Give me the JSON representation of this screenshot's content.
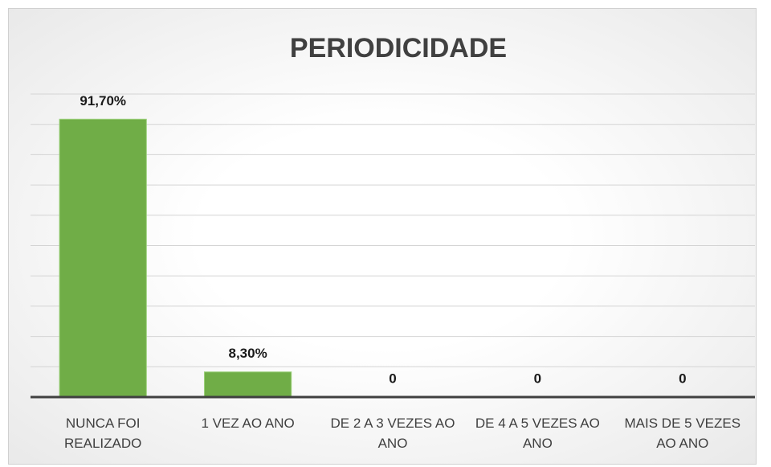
{
  "chart_data": {
    "type": "bar",
    "title": "PERIODICIDADE",
    "categories": [
      "NUNCA FOI REALIZADO",
      "1 VEZ AO ANO",
      "DE 2 A 3 VEZES AO ANO",
      "DE 4 A 5 VEZES AO ANO",
      "MAIS DE 5 VEZES AO ANO"
    ],
    "values": [
      91.7,
      8.3,
      0,
      0,
      0
    ],
    "value_labels": [
      "91,70%",
      "8,30%",
      "0",
      "0",
      "0"
    ],
    "color": "#70ad47",
    "ylim": [
      0,
      100
    ],
    "yticks": [
      0,
      10,
      20,
      30,
      40,
      50,
      60,
      70,
      80,
      90,
      100
    ],
    "grid": true
  }
}
